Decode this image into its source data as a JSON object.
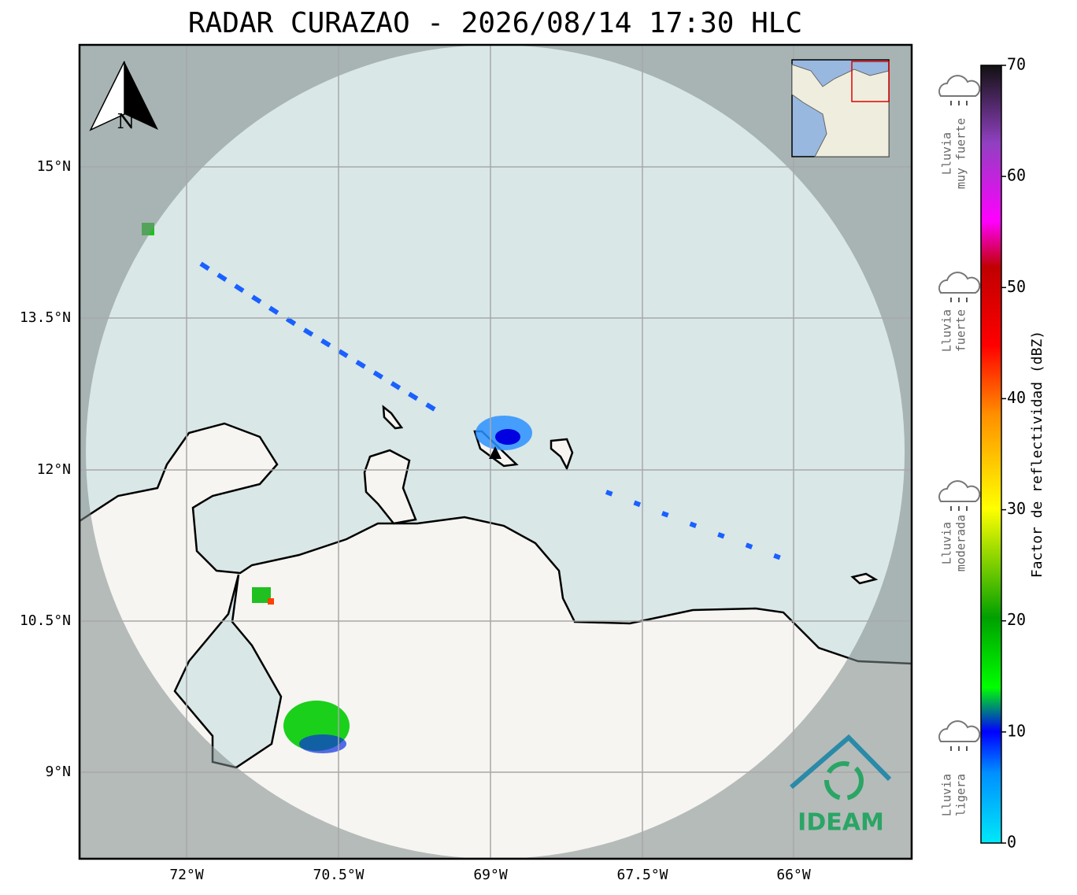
{
  "title": "RADAR CURAZAO - 2026/08/14 17:30 HLC",
  "lat_labels": [
    "15°N",
    "13.5°N",
    "12°N",
    "10.5°N",
    "9°N"
  ],
  "lon_labels": [
    "72°W",
    "70.5°W",
    "69°W",
    "67.5°W",
    "66°W"
  ],
  "north_label": "N",
  "logo": "IDEAM",
  "colorbar": {
    "label": "Factor de reflectividad (dBZ)",
    "lim": [
      0,
      70
    ],
    "ticks": [
      0,
      10,
      20,
      30,
      40,
      50,
      60,
      70
    ]
  },
  "rain_levels": [
    {
      "lines": [
        "Lluvia",
        "muy fuerte"
      ]
    },
    {
      "lines": [
        "Lluvia",
        "fuerte"
      ]
    },
    {
      "lines": [
        "Lluvia",
        "moderada"
      ]
    },
    {
      "lines": [
        "Lluvia",
        "ligera"
      ]
    }
  ]
}
